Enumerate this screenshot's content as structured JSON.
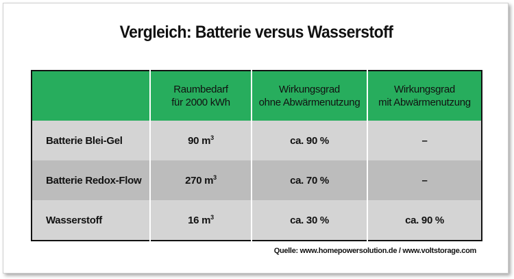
{
  "title": "Vergleich: Batterie versus Wasserstoff",
  "table": {
    "headers": [
      {
        "line1": "",
        "line2": ""
      },
      {
        "line1": "Raumbedarf",
        "line2": "für 2000 kWh"
      },
      {
        "line1": "Wirkungsgrad",
        "line2": "ohne Abwärmenutzung"
      },
      {
        "line1": "Wirkungsgrad",
        "line2": "mit Abwärmenutzung"
      }
    ],
    "rows": [
      {
        "label": "Batterie Blei-Gel",
        "space_value": "90 m",
        "space_sup": "3",
        "eff_without": "ca. 90 %",
        "eff_with": "–"
      },
      {
        "label": "Batterie Redox-Flow",
        "space_value": "270 m",
        "space_sup": "3",
        "eff_without": "ca. 70 %",
        "eff_with": "–"
      },
      {
        "label": "Wasserstoff",
        "space_value": "16 m",
        "space_sup": "3",
        "eff_without": "ca. 30 %",
        "eff_with": "ca. 90 %"
      }
    ]
  },
  "source": "Quelle: www.homepowersolution.de / www.voltstorage.com",
  "colors": {
    "header_green": "#27ad5d",
    "row_light": "#d4d4d4",
    "row_dark": "#bcbcbc"
  }
}
